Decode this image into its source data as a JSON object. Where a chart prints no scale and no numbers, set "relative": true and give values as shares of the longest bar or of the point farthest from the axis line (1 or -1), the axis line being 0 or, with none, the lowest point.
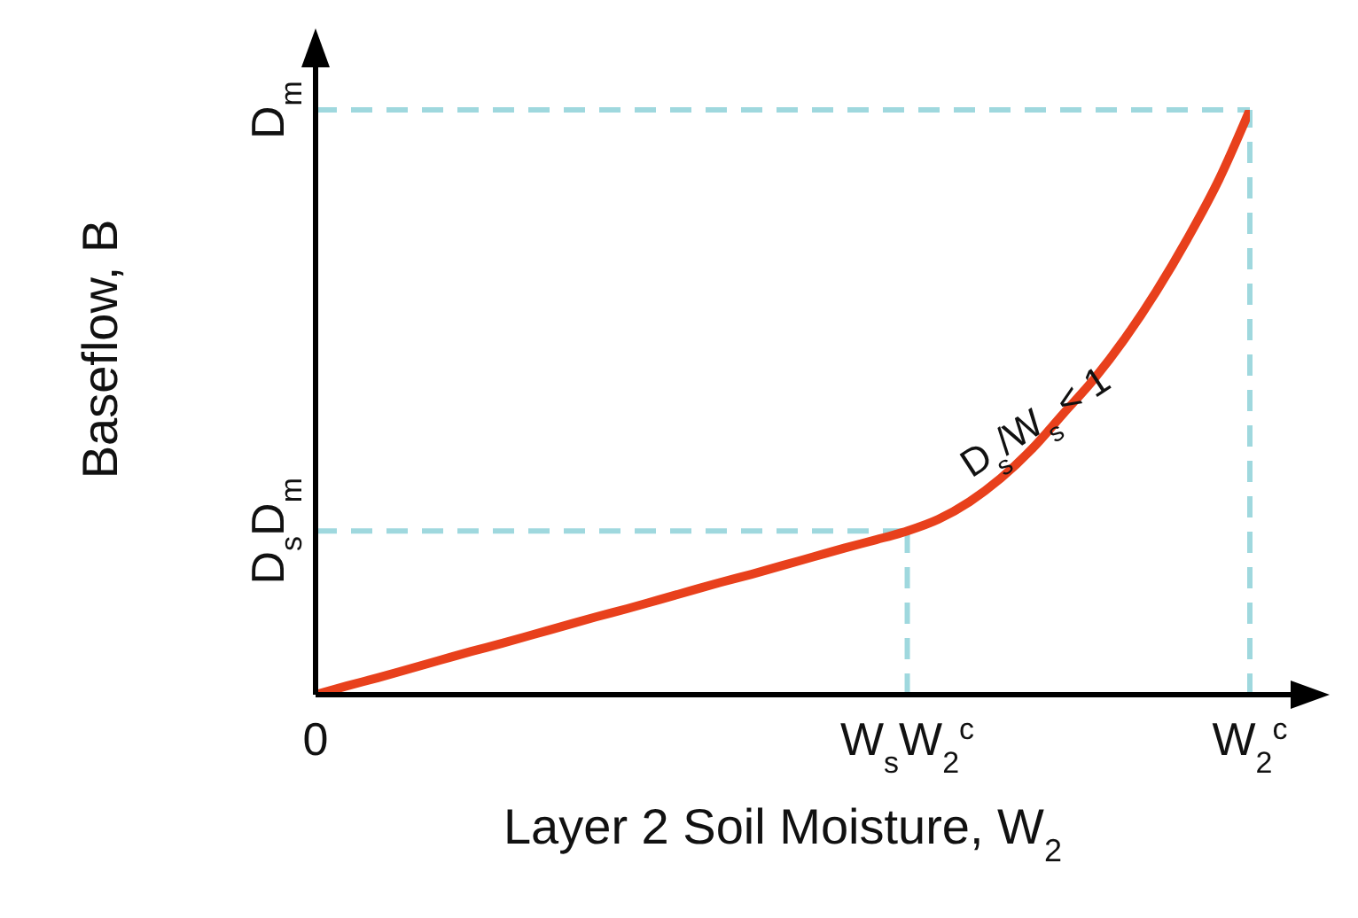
{
  "chart_data": {
    "type": "line",
    "relative": true,
    "xlabel": "Layer 2 Soil Moisture, W$_{2}$",
    "ylabel": "Baseflow, B",
    "categories": [
      "0",
      null,
      null,
      null,
      null,
      null,
      null,
      null,
      null,
      null,
      null,
      null,
      null,
      null,
      null,
      null,
      null,
      null,
      null,
      "W$_{s}$W$_{2}$$^{c}$",
      null,
      null,
      null,
      null,
      null,
      null,
      null,
      null,
      null,
      null,
      "W$_{2}$$^{c}$"
    ],
    "series": [
      {
        "color": "#e8401c",
        "values": [
          0,
          0.015,
          0.029,
          0.044,
          0.059,
          0.074,
          0.088,
          0.103,
          0.118,
          0.133,
          0.147,
          0.162,
          0.177,
          0.192,
          0.206,
          0.221,
          0.236,
          0.251,
          0.265,
          0.28,
          0.3,
          0.33,
          0.37,
          0.42,
          0.48,
          0.54,
          0.61,
          0.69,
          0.78,
          0.88,
          1
        ]
      }
    ],
    "ref_lines": [
      {
        "axis": "x",
        "value": "W$_{s}$W$_{2}$$^{c}$",
        "color": "#9fd8de",
        "line_style": "dashed"
      },
      {
        "axis": "y",
        "value": 0.28,
        "label": "D$_{s}$D$_{m}$",
        "color": "#9fd8de",
        "line_style": "dashed"
      },
      {
        "axis": "x",
        "value": "W$_{2}$$^{c}$",
        "color": "#9fd8de",
        "line_style": "dashed"
      },
      {
        "axis": "y",
        "value": 1,
        "label": "D$_{m}$",
        "color": "#9fd8de",
        "line_style": "dashed"
      }
    ],
    "annotations": [
      "D$_{s}$/W$_{s}$ < 1"
    ],
    "marker": "none",
    "line_style": "solid"
  }
}
